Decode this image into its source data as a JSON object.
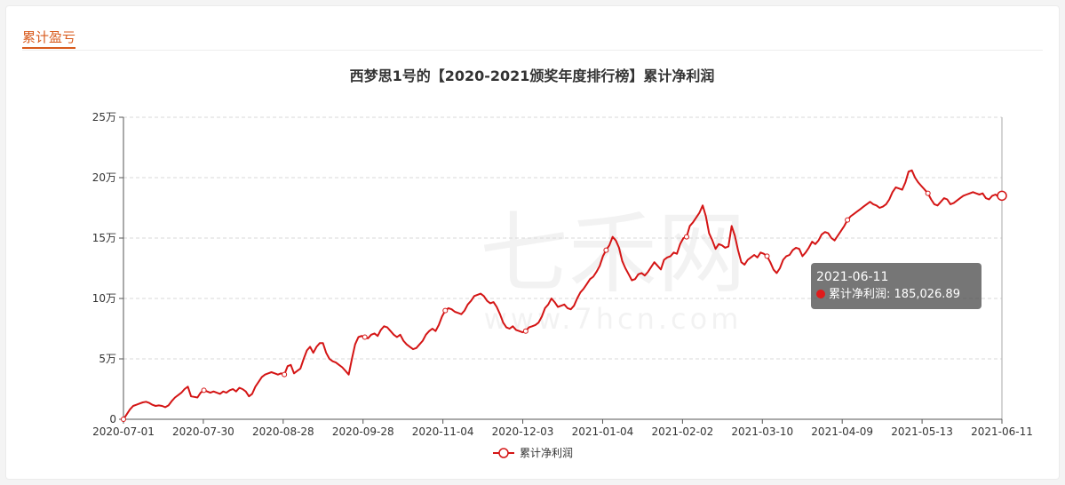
{
  "section": {
    "title": "累计盈亏"
  },
  "watermark": {
    "brand": "七禾网",
    "url": "www.7hcn.com"
  },
  "tooltip": {
    "date": "2021-06-11",
    "series": "累计净利润",
    "value_text": "185,026.89"
  },
  "colors": {
    "line": "#d41515",
    "accent": "#d85a1c",
    "axis": "#555555",
    "grid": "#d9d9d9"
  },
  "chart_data": {
    "type": "line",
    "title": "西梦思1号的【2020-2021颁奖年度排行榜】累计净利润",
    "xlabel": "",
    "ylabel": "",
    "x_ticks": [
      "2020-07-01",
      "2020-07-30",
      "2020-08-28",
      "2020-09-28",
      "2020-11-04",
      "2020-12-03",
      "2021-01-04",
      "2021-02-02",
      "2021-03-10",
      "2021-04-09",
      "2021-05-13",
      "2021-06-11"
    ],
    "y_ticks": [
      "0",
      "5万",
      "10万",
      "15万",
      "20万",
      "25万"
    ],
    "ylim": [
      0,
      250000
    ],
    "grid": true,
    "legend_position": "bottom",
    "series": [
      {
        "name": "累计净利润",
        "values": [
          0,
          4000,
          8000,
          11000,
          12000,
          13000,
          14000,
          14500,
          13500,
          12000,
          11000,
          11500,
          11000,
          10000,
          11500,
          15000,
          18000,
          20000,
          22000,
          25000,
          27000,
          19000,
          18500,
          18000,
          22000,
          24000,
          23000,
          22000,
          23000,
          22000,
          21000,
          23000,
          22000,
          24000,
          25000,
          23000,
          26000,
          25000,
          23000,
          19000,
          21000,
          27000,
          31000,
          35000,
          37000,
          38000,
          39000,
          38000,
          37000,
          38000,
          37000,
          44000,
          45000,
          38000,
          40000,
          42000,
          50000,
          57000,
          60000,
          55000,
          60000,
          63000,
          63000,
          55000,
          50000,
          48000,
          47000,
          45000,
          43000,
          40000,
          37000,
          50000,
          62000,
          68000,
          69000,
          68000,
          67000,
          70000,
          71000,
          69000,
          74000,
          77000,
          76000,
          73000,
          70000,
          68000,
          70000,
          65000,
          62000,
          60000,
          58000,
          59000,
          62000,
          65000,
          70000,
          73000,
          75000,
          73000,
          78000,
          85000,
          90000,
          92000,
          91000,
          89000,
          88000,
          87000,
          90000,
          95000,
          98000,
          102000,
          103000,
          104000,
          102000,
          98000,
          96000,
          97000,
          93000,
          87000,
          80000,
          76000,
          75000,
          77000,
          74000,
          73000,
          72000,
          73000,
          76000,
          77000,
          78000,
          80000,
          85000,
          92000,
          95000,
          100000,
          97000,
          93000,
          94000,
          95000,
          92000,
          91000,
          94000,
          100000,
          105000,
          108000,
          112000,
          116000,
          118000,
          122000,
          127000,
          135000,
          140000,
          144000,
          151000,
          148000,
          142000,
          131000,
          125000,
          120000,
          115000,
          116000,
          120000,
          121000,
          119000,
          122000,
          126000,
          130000,
          127000,
          124000,
          132000,
          134000,
          135000,
          138000,
          137000,
          145000,
          150000,
          151000,
          160000,
          163000,
          167000,
          171000,
          177000,
          168000,
          154000,
          148000,
          141000,
          145000,
          144000,
          142000,
          143000,
          160000,
          152000,
          140000,
          130000,
          128000,
          132000,
          134000,
          136000,
          134000,
          138000,
          137000,
          135000,
          130000,
          124000,
          121000,
          125000,
          132000,
          135000,
          136000,
          140000,
          142000,
          141000,
          135000,
          138000,
          142000,
          147000,
          145000,
          148000,
          153000,
          155000,
          154000,
          150000,
          148000,
          152000,
          156000,
          160000,
          165000,
          168000,
          170000,
          172000,
          174000,
          176000,
          178000,
          180000,
          178000,
          177000,
          175000,
          176000,
          178000,
          182000,
          188000,
          192000,
          191000,
          190000,
          196000,
          205000,
          206000,
          200000,
          196000,
          193000,
          190000,
          187000,
          182000,
          178000,
          177000,
          180000,
          183000,
          182000,
          178000,
          179000,
          181000,
          183000,
          185000,
          186000,
          187000,
          188000,
          187000,
          186000,
          187000,
          183000,
          182000,
          185000,
          186000,
          184000,
          185027
        ]
      }
    ]
  }
}
